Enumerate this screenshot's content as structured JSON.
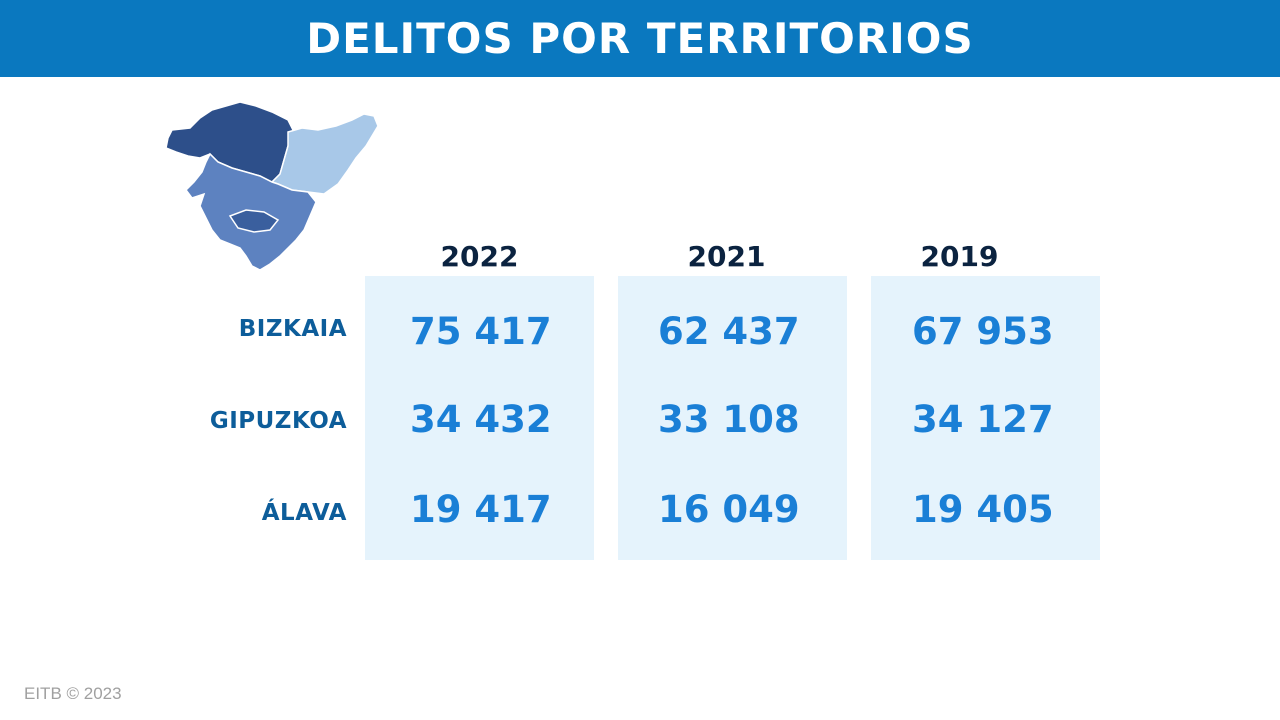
{
  "title": "DELITOS POR TERRITORIOS",
  "footer": "EITB © 2023",
  "colors": {
    "title_bar": "#0a78bf",
    "column_bg": "#e5f3fc",
    "value_text": "#1a7fd6",
    "row_label_text": "#0d5d9a",
    "year_text": "#0b2340",
    "map_bizkaia": "#3a5f9e",
    "map_gipuzkoa": "#a8c8e8",
    "map_alava": "#5d82c0",
    "map_bizkaia_dark": "#2d4f8a"
  },
  "chart_data": {
    "type": "table",
    "title": "DELITOS POR TERRITORIOS",
    "columns": [
      "2022",
      "2021",
      "2019"
    ],
    "rows": [
      "BIZKAIA",
      "GIPUZKOA",
      "ÁLAVA"
    ],
    "values": [
      [
        "75 417",
        "62 437",
        "67 953"
      ],
      [
        "34 432",
        "33 108",
        "34 127"
      ],
      [
        "19 417",
        "16 049",
        "19 405"
      ]
    ]
  }
}
